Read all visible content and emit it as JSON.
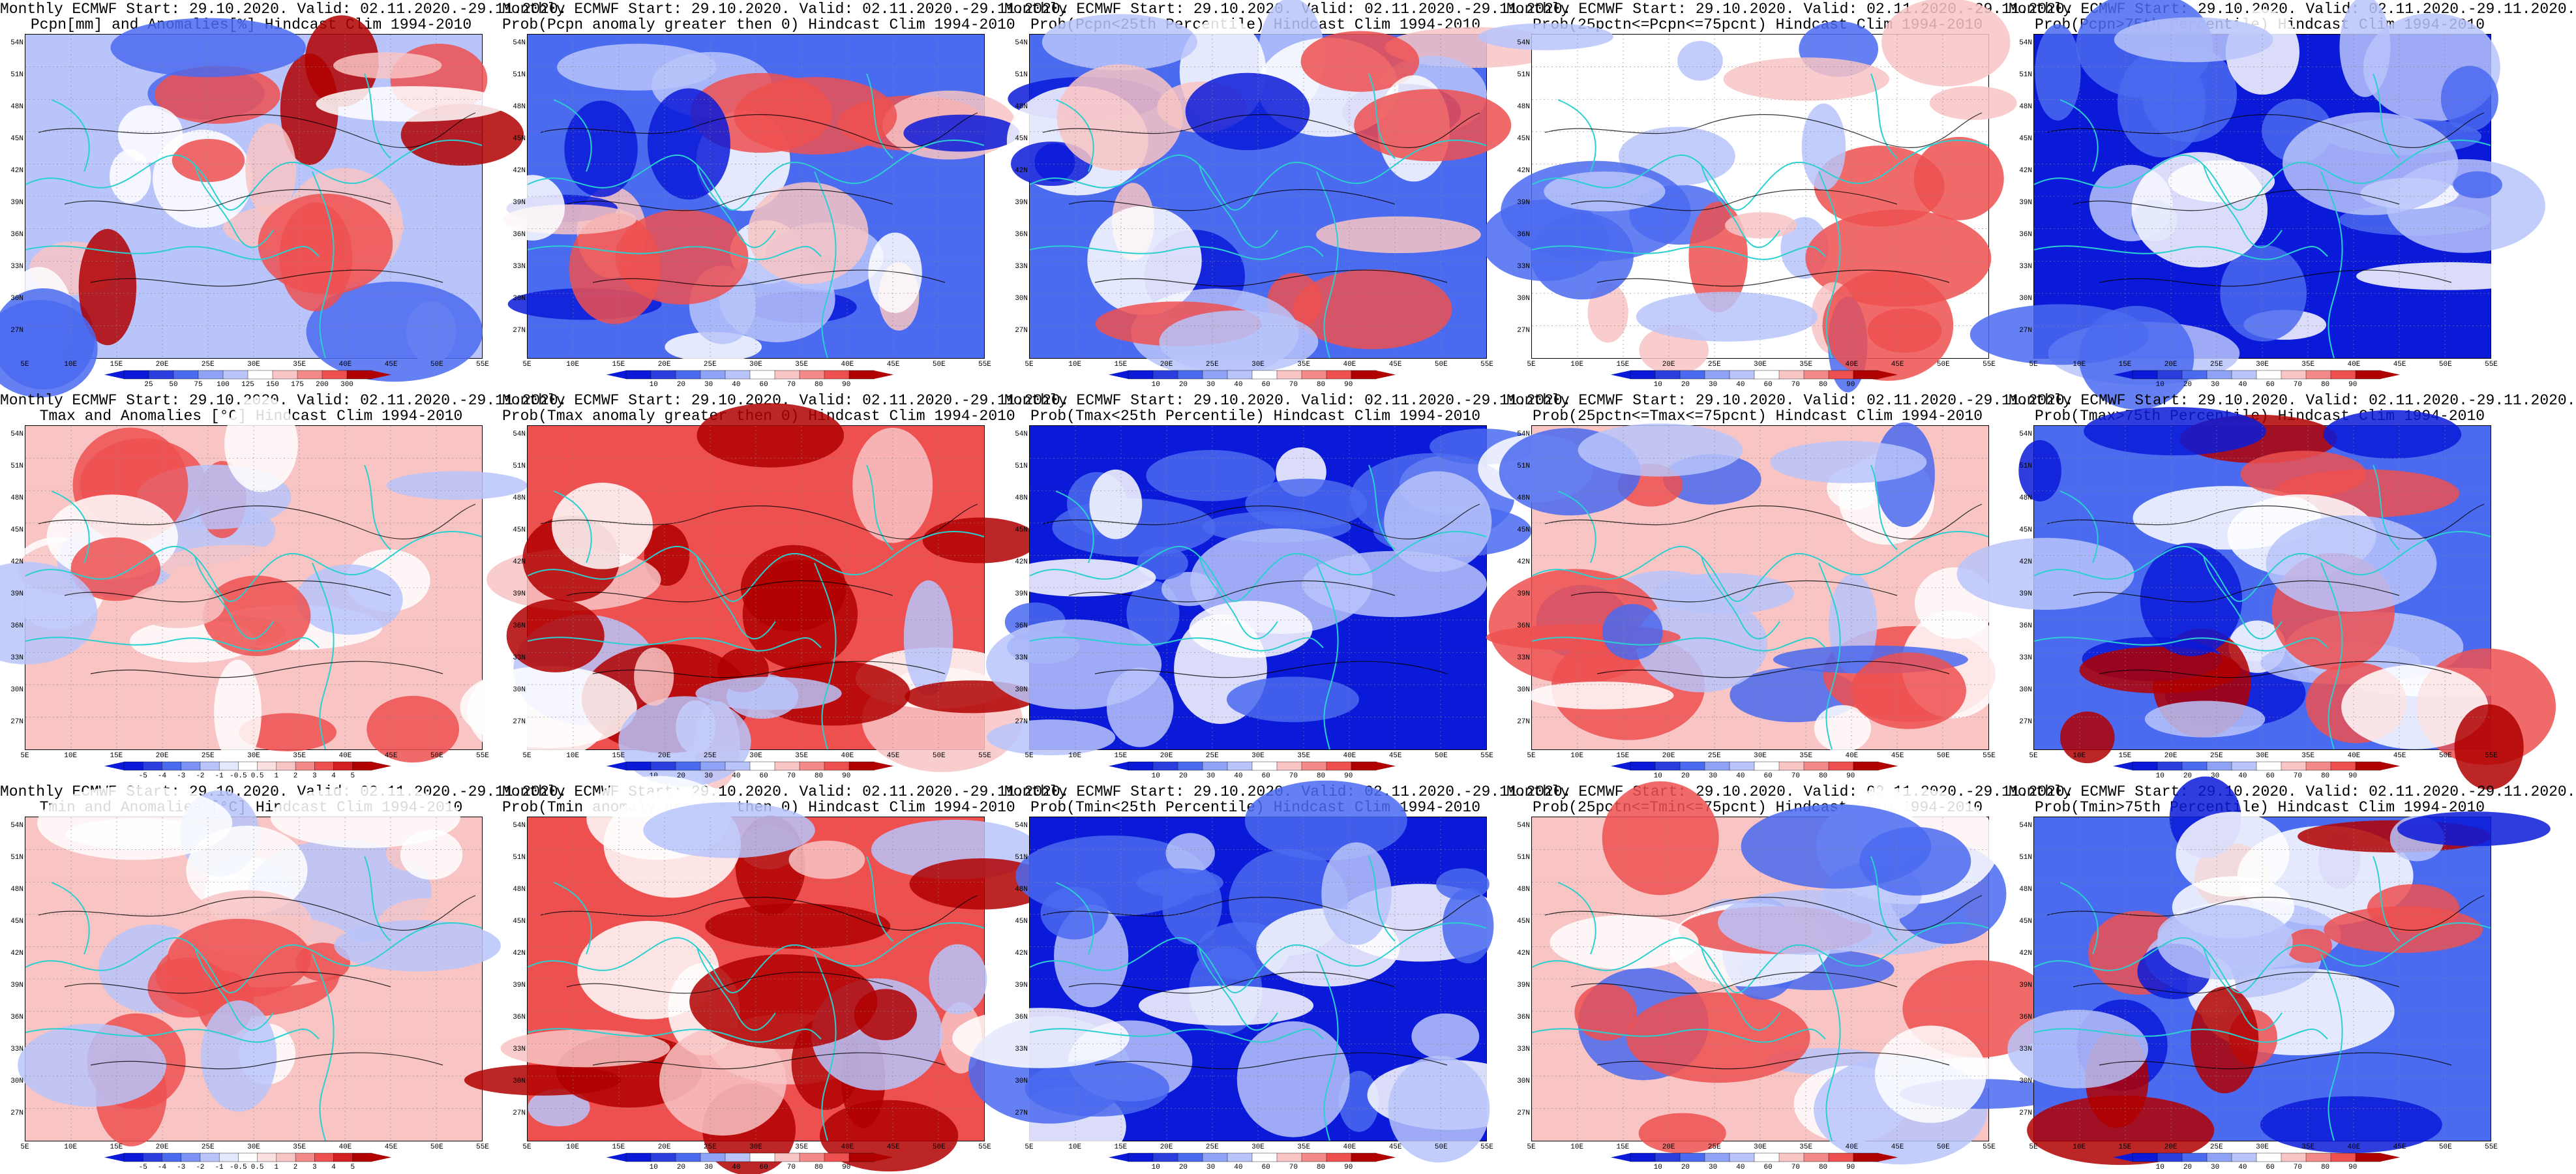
{
  "figure": {
    "rows": 3,
    "cols": 5,
    "lat_labels": [
      "54N",
      "51N",
      "48N",
      "45N",
      "42N",
      "39N",
      "36N",
      "33N",
      "30N",
      "27N"
    ],
    "lon_labels": [
      "5E",
      "10E",
      "15E",
      "20E",
      "25E",
      "30E",
      "35E",
      "40E",
      "45E",
      "50E",
      "55E"
    ],
    "colors": {
      "blue_dark": "#0a1ad8",
      "blue_mid": "#4a6af0",
      "blue_light": "#b8c4fa",
      "white": "#ffffff",
      "red_light": "#f8c4c4",
      "red_mid": "#ee5050",
      "red_dark": "#b00000",
      "coast": "#2ad0d0",
      "contour": "#000000"
    }
  },
  "legends": {
    "prob": [
      "10",
      "20",
      "30",
      "40",
      "60",
      "70",
      "80",
      "90"
    ],
    "pcpn": [
      "25",
      "50",
      "75",
      "100",
      "125",
      "150",
      "175",
      "200",
      "300"
    ],
    "temp": [
      "-5",
      "-4",
      "-3",
      "-2",
      "-1",
      "-0.5",
      "0.5",
      "1",
      "2",
      "3",
      "4",
      "5"
    ]
  },
  "panels": [
    {
      "t1": "Monthly ECMWF Start: 29.10.2020. Valid: 02.11.2020.-29.11.2020.",
      "t2": "Pcpn[mm] and Anomalies[%] Hindcast Clim 1994-2010",
      "legend": "pcpn",
      "theme": "mixed_red"
    },
    {
      "t1": "Monthly ECMWF Start: 29.10.2020. Valid: 02.11.2020.-29.11.2020.",
      "t2": "Prob(Pcpn anomaly greater then 0) Hindcast Clim 1994-2010",
      "legend": "prob",
      "theme": "blue"
    },
    {
      "t1": "Monthly ECMWF Start: 29.10.2020. Valid: 02.11.2020.-29.11.2020.",
      "t2": "Prob(Pcpn<25th Percentile) Hindcast Clim 1994-2010",
      "legend": "prob",
      "theme": "blue"
    },
    {
      "t1": "Monthly ECMWF Start: 29.10.2020. Valid: 02.11.2020.-29.11.2020.",
      "t2": "Prob(25pctn<=Pcpn<=75pcnt) Hindcast Clim 1994-2010",
      "legend": "prob",
      "theme": "light"
    },
    {
      "t1": "Monthly ECMWF Start: 29.10.2020. Valid: 02.11.2020.-29.11.2020.",
      "t2": "Prob(Pcpn>75th Percentile) Hindcast Clim 1994-2010",
      "legend": "prob",
      "theme": "deepblue"
    },
    {
      "t1": "Monthly ECMWF Start: 29.10.2020. Valid: 02.11.2020.-29.11.2020.",
      "t2": "Tmax and Anomalies [°C] Hindcast Clim 1994-2010",
      "legend": "temp",
      "theme": "lightred"
    },
    {
      "t1": "Monthly ECMWF Start: 29.10.2020. Valid: 02.11.2020.-29.11.2020.",
      "t2": "Prob(Tmax anomaly greater then 0) Hindcast Clim 1994-2010",
      "legend": "prob",
      "theme": "red"
    },
    {
      "t1": "Monthly ECMWF Start: 29.10.2020. Valid: 02.11.2020.-29.11.2020.",
      "t2": "Prob(Tmax<25th Percentile) Hindcast Clim 1994-2010",
      "legend": "prob",
      "theme": "deepblue"
    },
    {
      "t1": "Monthly ECMWF Start: 29.10.2020. Valid: 02.11.2020.-29.11.2020.",
      "t2": "Prob(25pctn<=Tmax<=75pcnt) Hindcast Clim 1994-2010",
      "legend": "prob",
      "theme": "mixed"
    },
    {
      "t1": "Monthly ECMWF Start: 29.10.2020. Valid: 02.11.2020.-29.11.2020.",
      "t2": "Prob(Tmax>75th Percentile) Hindcast Clim 1994-2010",
      "legend": "prob",
      "theme": "mixed_blue"
    },
    {
      "t1": "Monthly ECMWF Start: 29.10.2020. Valid: 02.11.2020.-29.11.2020.",
      "t2": "Tmin and Anomalies [°C] Hindcast Clim 1994-2010",
      "legend": "temp",
      "theme": "lightred"
    },
    {
      "t1": "Monthly ECMWF Start: 29.10.2020. Valid: 02.11.2020.-29.11.2020.",
      "t2": "Prob(Tmin anomaly greater then 0) Hindcast Clim 1994-2010",
      "legend": "prob",
      "theme": "red"
    },
    {
      "t1": "Monthly ECMWF Start: 29.10.2020. Valid: 02.11.2020.-29.11.2020.",
      "t2": "Prob(Tmin<25th Percentile) Hindcast Clim 1994-2010",
      "legend": "prob",
      "theme": "deepblue"
    },
    {
      "t1": "Monthly ECMWF Start: 29.10.2020. Valid: 02.11.2020.-29.11.2020.",
      "t2": "Prob(25pctn<=Tmin<=75pcnt) Hindcast Clim 1994-2010",
      "legend": "prob",
      "theme": "mixed"
    },
    {
      "t1": "Monthly ECMWF Start: 29.10.2020. Valid: 02.11.2020.-29.11.2020.",
      "t2": "Prob(Tmin>75th Percentile) Hindcast Clim 1994-2010",
      "legend": "prob",
      "theme": "mixed_blue"
    }
  ]
}
